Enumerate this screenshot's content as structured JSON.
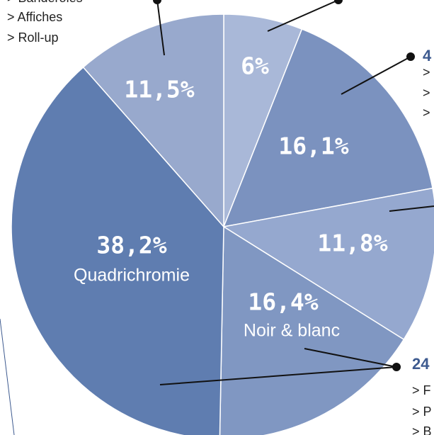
{
  "chart_data": {
    "type": "pie",
    "categories": [
      null,
      null,
      null,
      "Noir & blanc",
      "Quadrichromie",
      null
    ],
    "values": [
      6,
      16.1,
      11.8,
      16.4,
      38.2,
      11.5
    ],
    "value_labels": [
      "6%",
      "16,1%",
      "11,8%",
      "16,4%",
      "38,2%",
      "11,5%"
    ],
    "colors": [
      "#a9b8d8",
      "#7b92bf",
      "#95a8cf",
      "#8097c2",
      "#5f7db0",
      "#98a9cd"
    ],
    "annotations": [
      "> Banderoles",
      "> Affiches",
      "> Roll-up",
      "4",
      ">",
      ">",
      ">",
      "24",
      "> F",
      "> P",
      "> B"
    ]
  }
}
